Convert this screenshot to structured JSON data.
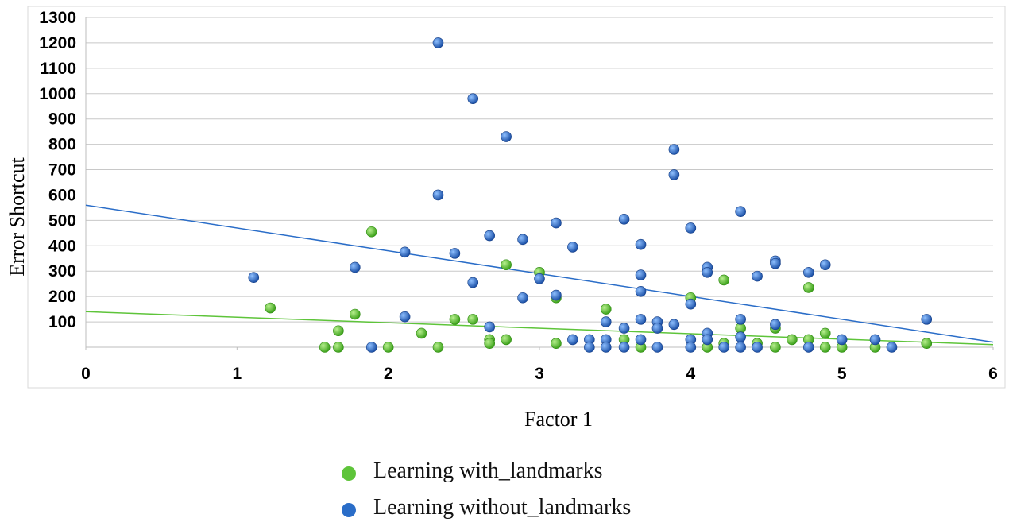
{
  "chart_data": {
    "type": "scatter",
    "title": "",
    "xlabel": "Factor 1",
    "ylabel": "Error Shortcut",
    "xlim": [
      0,
      6
    ],
    "ylim": [
      0,
      1300
    ],
    "x_ticks": [
      "0",
      "1",
      "2",
      "3",
      "4",
      "5",
      "6"
    ],
    "y_ticks": [
      "100",
      "200",
      "300",
      "400",
      "500",
      "600",
      "700",
      "800",
      "900",
      "1000",
      "1100",
      "1200",
      "1300"
    ],
    "grid": true,
    "legend_position": "bottom",
    "series": [
      {
        "name": "Learning with_landmarks",
        "color": "#5ec43a",
        "trendline": [
          [
            0,
            140
          ],
          [
            6,
            10
          ]
        ],
        "points": [
          [
            1.22,
            155
          ],
          [
            1.58,
            0
          ],
          [
            1.67,
            0
          ],
          [
            1.67,
            65
          ],
          [
            1.78,
            130
          ],
          [
            1.89,
            455
          ],
          [
            2.0,
            0
          ],
          [
            2.22,
            55
          ],
          [
            2.33,
            0
          ],
          [
            2.44,
            110
          ],
          [
            2.56,
            110
          ],
          [
            2.67,
            30
          ],
          [
            2.67,
            15
          ],
          [
            2.78,
            325
          ],
          [
            2.78,
            30
          ],
          [
            3.0,
            295
          ],
          [
            3.11,
            195
          ],
          [
            3.11,
            15
          ],
          [
            3.44,
            150
          ],
          [
            3.56,
            30
          ],
          [
            3.67,
            0
          ],
          [
            4.0,
            195
          ],
          [
            4.11,
            0
          ],
          [
            4.22,
            265
          ],
          [
            4.22,
            15
          ],
          [
            4.33,
            75
          ],
          [
            4.44,
            15
          ],
          [
            4.56,
            75
          ],
          [
            4.56,
            0
          ],
          [
            4.67,
            30
          ],
          [
            4.78,
            235
          ],
          [
            4.78,
            30
          ],
          [
            4.89,
            55
          ],
          [
            4.89,
            0
          ],
          [
            5.0,
            0
          ],
          [
            5.22,
            0
          ],
          [
            5.56,
            15
          ]
        ]
      },
      {
        "name": "Learning without_landmarks",
        "color": "#2a6dc8",
        "trendline": [
          [
            0,
            560
          ],
          [
            6,
            20
          ]
        ],
        "points": [
          [
            1.11,
            275
          ],
          [
            1.78,
            315
          ],
          [
            1.89,
            0
          ],
          [
            2.11,
            375
          ],
          [
            2.11,
            120
          ],
          [
            2.33,
            1200
          ],
          [
            2.33,
            600
          ],
          [
            2.44,
            370
          ],
          [
            2.56,
            980
          ],
          [
            2.56,
            255
          ],
          [
            2.67,
            440
          ],
          [
            2.67,
            80
          ],
          [
            2.78,
            830
          ],
          [
            2.89,
            425
          ],
          [
            2.89,
            195
          ],
          [
            3.0,
            270
          ],
          [
            3.11,
            490
          ],
          [
            3.11,
            205
          ],
          [
            3.22,
            395
          ],
          [
            3.22,
            30
          ],
          [
            3.33,
            30
          ],
          [
            3.33,
            0
          ],
          [
            3.44,
            100
          ],
          [
            3.44,
            30
          ],
          [
            3.44,
            0
          ],
          [
            3.56,
            505
          ],
          [
            3.56,
            75
          ],
          [
            3.56,
            0
          ],
          [
            3.67,
            405
          ],
          [
            3.67,
            285
          ],
          [
            3.67,
            220
          ],
          [
            3.67,
            110
          ],
          [
            3.67,
            30
          ],
          [
            3.78,
            100
          ],
          [
            3.78,
            75
          ],
          [
            3.78,
            0
          ],
          [
            3.89,
            780
          ],
          [
            3.89,
            680
          ],
          [
            3.89,
            90
          ],
          [
            4.0,
            470
          ],
          [
            4.0,
            170
          ],
          [
            4.0,
            30
          ],
          [
            4.0,
            0
          ],
          [
            4.11,
            315
          ],
          [
            4.11,
            295
          ],
          [
            4.11,
            55
          ],
          [
            4.11,
            30
          ],
          [
            4.22,
            0
          ],
          [
            4.33,
            535
          ],
          [
            4.33,
            110
          ],
          [
            4.33,
            40
          ],
          [
            4.33,
            0
          ],
          [
            4.44,
            280
          ],
          [
            4.44,
            0
          ],
          [
            4.56,
            340
          ],
          [
            4.56,
            330
          ],
          [
            4.56,
            90
          ],
          [
            4.78,
            295
          ],
          [
            4.78,
            0
          ],
          [
            4.89,
            325
          ],
          [
            5.0,
            30
          ],
          [
            5.22,
            30
          ],
          [
            5.33,
            0
          ],
          [
            5.56,
            110
          ]
        ]
      }
    ]
  }
}
